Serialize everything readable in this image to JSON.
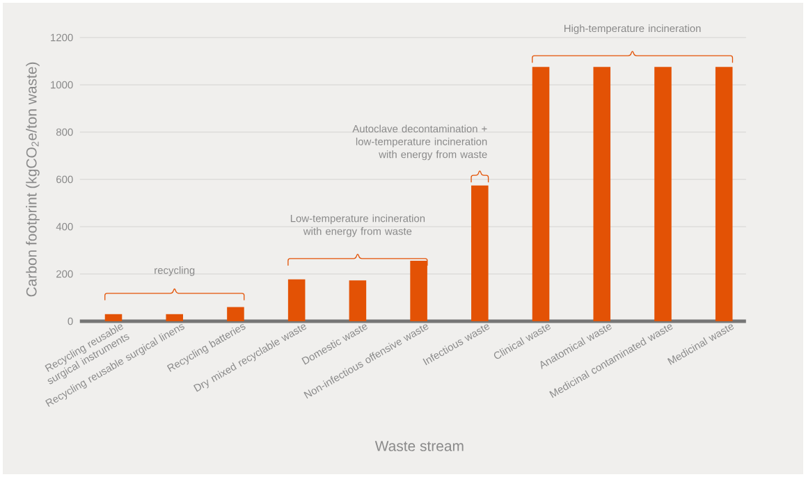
{
  "chart_data": {
    "type": "bar",
    "xlabel": "Waste stream",
    "ylabel": "Carbon footprint (kgCO$_{2}$e/ton waste)",
    "categories": [
      "Recycling reusable surgical instruments",
      "Recycling reusable surgical linens",
      "Recycling batteries",
      "Dry mixed recyclable waste",
      "Domestic waste",
      "Non-infectious offensive waste",
      "Infectious waste",
      "Clinical waste",
      "Anatomical waste",
      "Medicinal contaminated waste",
      "Medicinal waste"
    ],
    "values": [
      30,
      30,
      60,
      177,
      173,
      256,
      574,
      1076,
      1076,
      1076,
      1076
    ],
    "color": "#e35205",
    "ylim": [
      0,
      1200
    ],
    "yticks": [
      0,
      200,
      400,
      600,
      800,
      1000,
      1200
    ],
    "grid": "y",
    "annotations": [
      "recycling",
      "Low-temperature incineration with energy from waste",
      "Autoclave decontamination + low-temperature incineration with energy from waste",
      "High-temperature incineration"
    ]
  }
}
